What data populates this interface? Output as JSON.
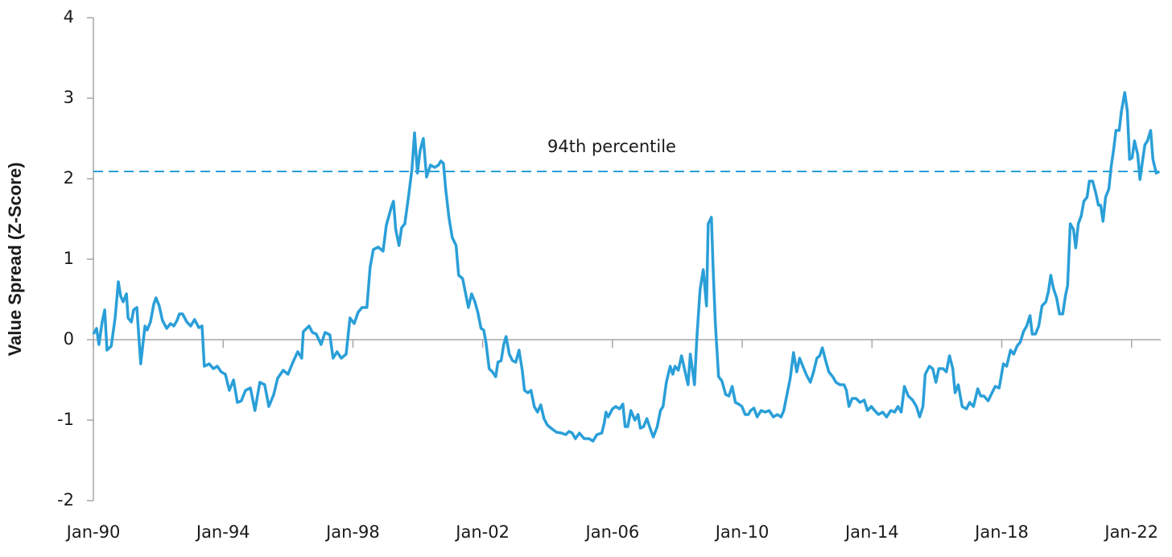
{
  "chart_data": {
    "type": "line",
    "y_label": "Value Spread (Z-Score)",
    "xlim": [
      1990,
      2022.9
    ],
    "ylim": [
      -2,
      4
    ],
    "yticks": [
      -2,
      -1,
      0,
      1,
      2,
      3,
      4
    ],
    "xticks": [
      {
        "value": 1990,
        "label": "Jan-90"
      },
      {
        "value": 1994,
        "label": "Jan-94"
      },
      {
        "value": 1998,
        "label": "Jan-98"
      },
      {
        "value": 2002,
        "label": "Jan-02"
      },
      {
        "value": 2006,
        "label": "Jan-06"
      },
      {
        "value": 2010,
        "label": "Jan-10"
      },
      {
        "value": 2014,
        "label": "Jan-14"
      },
      {
        "value": 2018,
        "label": "Jan-18"
      },
      {
        "value": 2022,
        "label": "Jan-22"
      }
    ],
    "reference_line": {
      "label": "94th percentile",
      "value": 2.09,
      "color": "#2a9fd8"
    },
    "x": [
      1990.0,
      1990.1,
      1990.17,
      1990.27,
      1990.35,
      1990.42,
      1990.55,
      1990.67,
      1990.77,
      1990.84,
      1990.92,
      1991.02,
      1991.07,
      1991.17,
      1991.24,
      1991.34,
      1991.46,
      1991.59,
      1991.66,
      1991.76,
      1991.86,
      1991.93,
      1992.03,
      1992.13,
      1992.26,
      1992.38,
      1992.48,
      1992.58,
      1992.65,
      1992.75,
      1992.88,
      1993.0,
      1993.12,
      1993.25,
      1993.35,
      1993.42,
      1993.57,
      1993.7,
      1993.82,
      1993.94,
      1994.07,
      1994.19,
      1994.32,
      1994.44,
      1994.56,
      1994.69,
      1994.84,
      1994.98,
      1995.13,
      1995.28,
      1995.41,
      1995.56,
      1995.68,
      1995.85,
      1996.0,
      1996.15,
      1996.3,
      1996.42,
      1996.47,
      1996.65,
      1996.75,
      1996.87,
      1997.02,
      1997.14,
      1997.29,
      1997.39,
      1997.51,
      1997.64,
      1997.79,
      1997.91,
      1998.04,
      1998.16,
      1998.28,
      1998.43,
      1998.53,
      1998.63,
      1998.78,
      1998.93,
      1999.03,
      1999.18,
      1999.25,
      1999.32,
      1999.42,
      1999.5,
      1999.6,
      1999.72,
      1999.82,
      1999.9,
      1999.99,
      2000.07,
      2000.17,
      2000.27,
      2000.39,
      2000.52,
      2000.64,
      2000.71,
      2000.79,
      2000.86,
      2000.96,
      2001.06,
      2001.18,
      2001.26,
      2001.38,
      2001.46,
      2001.56,
      2001.66,
      2001.76,
      2001.85,
      2001.95,
      2002.03,
      2002.1,
      2002.2,
      2002.3,
      2002.4,
      2002.47,
      2002.57,
      2002.65,
      2002.72,
      2002.82,
      2002.92,
      2003.02,
      2003.12,
      2003.22,
      2003.29,
      2003.39,
      2003.49,
      2003.59,
      2003.69,
      2003.79,
      2003.89,
      2003.99,
      2004.14,
      2004.28,
      2004.43,
      2004.56,
      2004.66,
      2004.76,
      2004.86,
      2004.98,
      2005.13,
      2005.28,
      2005.4,
      2005.52,
      2005.67,
      2005.75,
      2005.8,
      2005.87,
      2006.0,
      2006.1,
      2006.22,
      2006.32,
      2006.39,
      2006.47,
      2006.57,
      2006.69,
      2006.79,
      2006.86,
      2006.96,
      2007.06,
      2007.16,
      2007.26,
      2007.38,
      2007.48,
      2007.56,
      2007.66,
      2007.78,
      2007.86,
      2007.93,
      2008.03,
      2008.13,
      2008.23,
      2008.33,
      2008.4,
      2008.53,
      2008.6,
      2008.7,
      2008.8,
      2008.9,
      2008.95,
      2009.05,
      2009.1,
      2009.17,
      2009.27,
      2009.37,
      2009.49,
      2009.59,
      2009.69,
      2009.79,
      2009.89,
      2009.99,
      2010.09,
      2010.19,
      2010.26,
      2010.36,
      2010.46,
      2010.58,
      2010.71,
      2010.83,
      2010.96,
      2011.08,
      2011.2,
      2011.28,
      2011.38,
      2011.48,
      2011.58,
      2011.68,
      2011.77,
      2011.87,
      2011.97,
      2012.1,
      2012.2,
      2012.3,
      2012.39,
      2012.47,
      2012.57,
      2012.67,
      2012.79,
      2012.89,
      2013.01,
      2013.14,
      2013.21,
      2013.29,
      2013.39,
      2013.51,
      2013.63,
      2013.76,
      2013.86,
      2013.98,
      2014.08,
      2014.2,
      2014.33,
      2014.45,
      2014.58,
      2014.7,
      2014.8,
      2014.9,
      2015.0,
      2015.12,
      2015.25,
      2015.37,
      2015.47,
      2015.57,
      2015.64,
      2015.77,
      2015.87,
      2015.97,
      2016.06,
      2016.19,
      2016.29,
      2016.39,
      2016.49,
      2016.56,
      2016.66,
      2016.78,
      2016.91,
      2017.01,
      2017.13,
      2017.26,
      2017.35,
      2017.45,
      2017.58,
      2017.7,
      2017.8,
      2017.92,
      2018.05,
      2018.15,
      2018.27,
      2018.37,
      2018.47,
      2018.57,
      2018.67,
      2018.77,
      2018.87,
      2018.94,
      2019.04,
      2019.14,
      2019.24,
      2019.36,
      2019.44,
      2019.51,
      2019.59,
      2019.69,
      2019.78,
      2019.88,
      2019.96,
      2020.03,
      2020.11,
      2020.21,
      2020.28,
      2020.36,
      2020.45,
      2020.53,
      2020.63,
      2020.7,
      2020.8,
      2020.9,
      2020.98,
      2021.05,
      2021.12,
      2021.2,
      2021.3,
      2021.37,
      2021.45,
      2021.52,
      2021.62,
      2021.69,
      2021.79,
      2021.87,
      2021.94,
      2022.02,
      2022.09,
      2022.19,
      2022.26,
      2022.34,
      2022.41,
      2022.49,
      2022.59,
      2022.66,
      2022.76,
      2022.86
    ],
    "series": [
      {
        "name": "Value Spread",
        "color": "#2a9fd8",
        "values": [
          0.07,
          0.14,
          -0.06,
          0.22,
          0.37,
          -0.13,
          -0.08,
          0.27,
          0.72,
          0.54,
          0.47,
          0.57,
          0.27,
          0.22,
          0.37,
          0.4,
          -0.3,
          0.17,
          0.12,
          0.22,
          0.44,
          0.52,
          0.42,
          0.24,
          0.14,
          0.2,
          0.17,
          0.24,
          0.32,
          0.32,
          0.22,
          0.17,
          0.25,
          0.15,
          0.17,
          -0.33,
          -0.3,
          -0.36,
          -0.33,
          -0.4,
          -0.43,
          -0.63,
          -0.5,
          -0.78,
          -0.76,
          -0.63,
          -0.6,
          -0.88,
          -0.53,
          -0.56,
          -0.83,
          -0.68,
          -0.48,
          -0.38,
          -0.43,
          -0.28,
          -0.15,
          -0.23,
          0.1,
          0.17,
          0.09,
          0.07,
          -0.06,
          0.09,
          0.06,
          -0.23,
          -0.15,
          -0.23,
          -0.18,
          0.27,
          0.2,
          0.34,
          0.4,
          0.4,
          0.9,
          1.12,
          1.15,
          1.1,
          1.42,
          1.64,
          1.72,
          1.37,
          1.17,
          1.39,
          1.44,
          1.8,
          2.12,
          2.57,
          2.07,
          2.35,
          2.5,
          2.02,
          2.17,
          2.14,
          2.17,
          2.22,
          2.19,
          1.87,
          1.52,
          1.27,
          1.17,
          0.8,
          0.76,
          0.6,
          0.4,
          0.57,
          0.47,
          0.34,
          0.14,
          0.12,
          -0.03,
          -0.36,
          -0.4,
          -0.46,
          -0.28,
          -0.26,
          -0.06,
          0.04,
          -0.18,
          -0.26,
          -0.28,
          -0.13,
          -0.38,
          -0.63,
          -0.66,
          -0.63,
          -0.83,
          -0.9,
          -0.81,
          -0.98,
          -1.06,
          -1.11,
          -1.15,
          -1.16,
          -1.18,
          -1.14,
          -1.16,
          -1.23,
          -1.16,
          -1.23,
          -1.23,
          -1.26,
          -1.18,
          -1.16,
          -1.03,
          -0.9,
          -0.96,
          -0.86,
          -0.83,
          -0.86,
          -0.8,
          -1.08,
          -1.08,
          -0.88,
          -1.0,
          -0.93,
          -1.1,
          -1.08,
          -0.98,
          -1.1,
          -1.21,
          -1.08,
          -0.88,
          -0.83,
          -0.53,
          -0.33,
          -0.43,
          -0.33,
          -0.38,
          -0.2,
          -0.38,
          -0.56,
          -0.18,
          -0.56,
          0.02,
          0.62,
          0.87,
          0.42,
          1.44,
          1.52,
          0.92,
          0.22,
          -0.46,
          -0.51,
          -0.68,
          -0.7,
          -0.58,
          -0.78,
          -0.8,
          -0.83,
          -0.93,
          -0.93,
          -0.88,
          -0.85,
          -0.96,
          -0.88,
          -0.9,
          -0.88,
          -0.96,
          -0.93,
          -0.96,
          -0.88,
          -0.68,
          -0.48,
          -0.16,
          -0.4,
          -0.23,
          -0.33,
          -0.43,
          -0.53,
          -0.4,
          -0.23,
          -0.2,
          -0.1,
          -0.26,
          -0.4,
          -0.46,
          -0.53,
          -0.56,
          -0.56,
          -0.63,
          -0.83,
          -0.73,
          -0.73,
          -0.78,
          -0.75,
          -0.88,
          -0.83,
          -0.88,
          -0.93,
          -0.9,
          -0.96,
          -0.88,
          -0.9,
          -0.83,
          -0.9,
          -0.58,
          -0.7,
          -0.75,
          -0.83,
          -0.96,
          -0.83,
          -0.43,
          -0.33,
          -0.36,
          -0.53,
          -0.36,
          -0.36,
          -0.4,
          -0.2,
          -0.36,
          -0.66,
          -0.56,
          -0.83,
          -0.86,
          -0.78,
          -0.83,
          -0.61,
          -0.7,
          -0.7,
          -0.76,
          -0.66,
          -0.58,
          -0.6,
          -0.3,
          -0.33,
          -0.13,
          -0.18,
          -0.08,
          -0.03,
          0.1,
          0.17,
          0.3,
          0.07,
          0.07,
          0.17,
          0.42,
          0.47,
          0.6,
          0.8,
          0.64,
          0.52,
          0.32,
          0.32,
          0.54,
          0.67,
          1.44,
          1.37,
          1.14,
          1.44,
          1.54,
          1.72,
          1.77,
          1.97,
          1.97,
          1.82,
          1.67,
          1.67,
          1.47,
          1.77,
          1.87,
          2.14,
          2.37,
          2.6,
          2.6,
          2.84,
          3.07,
          2.84,
          2.24,
          2.26,
          2.47,
          2.3,
          1.99,
          2.22,
          2.42,
          2.47,
          2.6,
          2.24,
          2.07,
          2.09
        ]
      }
    ]
  }
}
